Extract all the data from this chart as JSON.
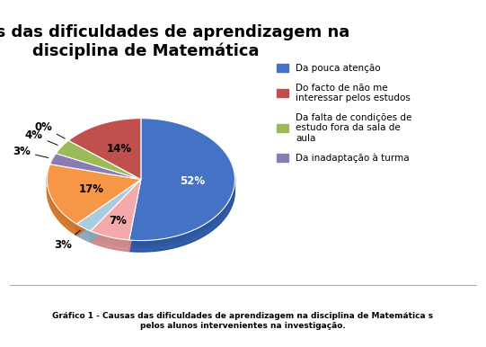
{
  "title": "Causas das dificuldades de aprendizagem na\ndisciplina de Matemática",
  "slices": [
    52,
    7,
    3,
    17,
    3,
    4,
    0,
    14
  ],
  "labels": [
    "52%",
    "7%",
    "3%",
    "17%",
    "3%",
    "4%",
    "0%",
    "14%"
  ],
  "colors": [
    "#4472C4",
    "#F4AAAA",
    "#AACCE0",
    "#F79646",
    "#8B7BB5",
    "#9BBB59",
    "#9BBB59",
    "#C0504D"
  ],
  "legend_labels": [
    "Da pouca atenção",
    "Do facto de não me\ninteressar pelos estudos",
    "Da falta de condições de\nestudo fora da sala de\naula",
    "Da inadaptação à turma"
  ],
  "legend_colors": [
    "#4472C4",
    "#C0504D",
    "#9BBB59",
    "#8B7BB5"
  ],
  "caption": "Gráfico 1 - Causas das dificuldades de aprendizagem na disciplina de Matemática s\npelos alunos intervenientes na investigação.",
  "bg_color": "#FFFFFF",
  "startangle": 90,
  "title_fontsize": 13,
  "label_fontsize": 8.5,
  "legend_fontsize": 7.5
}
